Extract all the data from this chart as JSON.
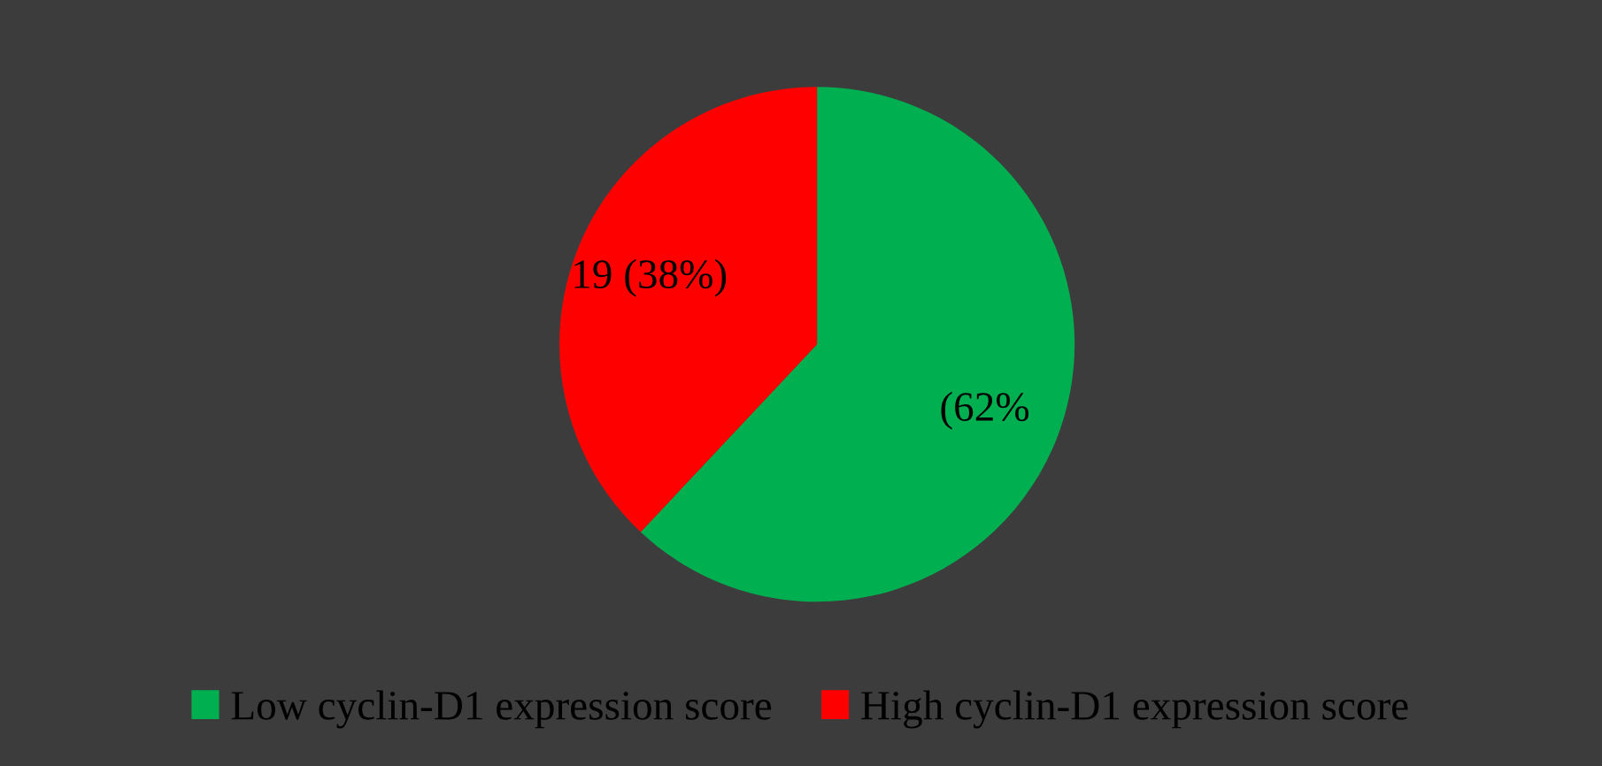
{
  "chart_data": {
    "type": "pie",
    "categories": [
      "Low cyclin-D1 expression score",
      "High cyclin-D1 expression score"
    ],
    "values": [
      62,
      38
    ],
    "colors": [
      "#00b050",
      "#ff0000"
    ],
    "value_labels": [
      "(62%",
      "19 (38%)"
    ],
    "legend": "bottom"
  }
}
